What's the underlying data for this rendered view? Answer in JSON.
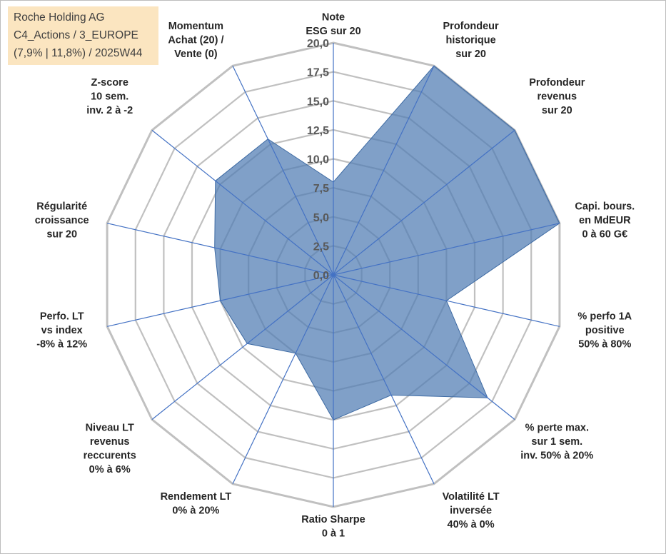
{
  "info": {
    "company": "Roche Holding AG",
    "category": "C4_Actions / 3_EUROPE",
    "stats": "(7,9% | 11,8%) / 2025W44"
  },
  "chart_data": {
    "type": "radar",
    "title": "",
    "r_range": [
      0,
      20
    ],
    "ticks": [
      "0,0",
      "2,5",
      "5,0",
      "7,5",
      "10,0",
      "12,5",
      "15,0",
      "17,5",
      "20,0"
    ],
    "grid": true,
    "axes": [
      {
        "label": [
          "Note",
          "ESG sur 20"
        ],
        "value": 8.0
      },
      {
        "label": [
          "Profondeur",
          "historique",
          "sur 20"
        ],
        "value": 20.0
      },
      {
        "label": [
          "Profondeur",
          "revenus",
          "sur 20"
        ],
        "value": 20.0
      },
      {
        "label": [
          "Capi. bours.",
          "en MdEUR",
          "0 à 60 G€"
        ],
        "value": 20.0
      },
      {
        "label": [
          "% perfo 1A",
          "positive",
          "50% à 80%"
        ],
        "value": 10.0
      },
      {
        "label": [
          "% perte max.",
          "sur 1 sem.",
          "inv. 50% à 20%"
        ],
        "value": 17.0
      },
      {
        "label": [
          "Volatilité LT",
          "inversée",
          "40% à 0%"
        ],
        "value": 11.5
      },
      {
        "label": [
          "Ratio Sharpe",
          "0 à 1"
        ],
        "value": 12.5
      },
      {
        "label": [
          "Rendement LT",
          "0% à 20%"
        ],
        "value": 7.5
      },
      {
        "label": [
          "Niveau LT",
          "revenus",
          "reccurents",
          "0% à 6%"
        ],
        "value": 9.5
      },
      {
        "label": [
          "Perfo. LT",
          "vs index",
          "-8% à 12%"
        ],
        "value": 10.0
      },
      {
        "label": [
          "Régularité",
          "croissance",
          "sur 20"
        ],
        "value": 10.5
      },
      {
        "label": [
          "Z-score",
          "10 sem.",
          "inv. 2 à -2"
        ],
        "value": 13.0
      },
      {
        "label": [
          "Momentum",
          "Achat (20) /",
          "Vente (0)"
        ],
        "value": 13.0
      }
    ],
    "series": [
      {
        "name": "Roche Holding AG",
        "fill": "#4f7cb3",
        "fill_opacity": 0.72,
        "stroke": "#3d6aa3"
      }
    ],
    "grid_color": "#c0c0c0",
    "axis_color": "#4472c4"
  }
}
